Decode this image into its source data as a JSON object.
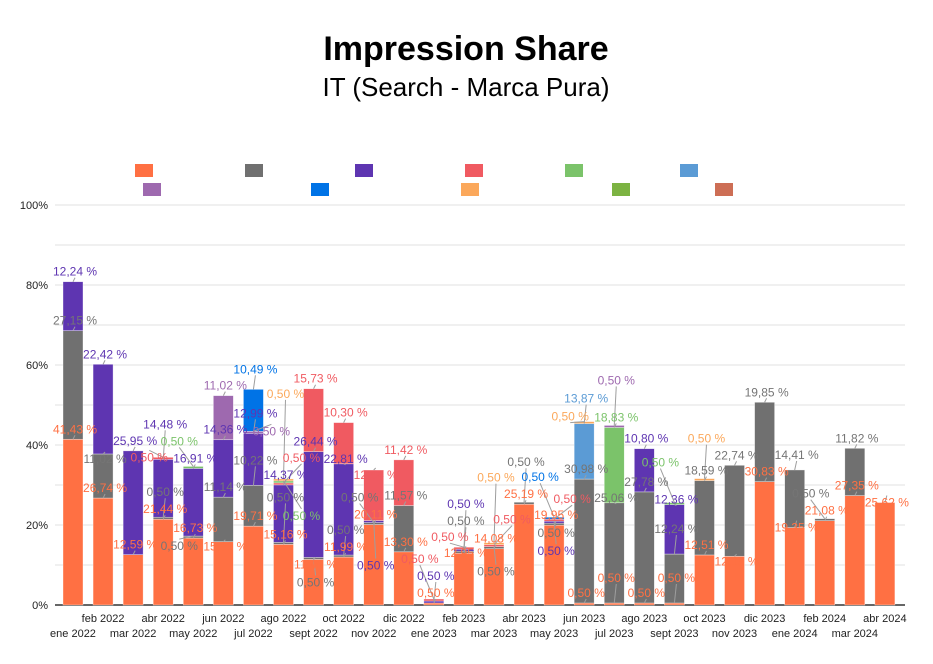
{
  "chart_data": {
    "type": "bar",
    "stacked": true,
    "title": "Impression Share",
    "subtitle": "IT (Search - Marca Pura)",
    "xlabel": "",
    "ylabel": "",
    "ylim": [
      0,
      100
    ],
    "y_ticks": [
      "0%",
      "20%",
      "40%",
      "60%",
      "80%",
      "100%"
    ],
    "y_tick_values": [
      0,
      20,
      40,
      60,
      80,
      100
    ],
    "grid": true,
    "legend": "top",
    "categories": [
      "ene 2022",
      "feb 2022",
      "mar 2022",
      "abr 2022",
      "may 2022",
      "jun 2022",
      "jul 2022",
      "ago 2022",
      "sept 2022",
      "oct 2022",
      "nov 2022",
      "dic 2022",
      "ene 2023",
      "feb 2023",
      "mar 2023",
      "abr 2023",
      "may 2023",
      "jun 2023",
      "jul 2023",
      "ago 2023",
      "sept 2023",
      "oct 2023",
      "nov 2023",
      "dic 2023",
      "ene 2024",
      "feb 2024",
      "mar 2024",
      "abr 2024"
    ],
    "series": [
      {
        "name": "",
        "color": "#ff7043",
        "label_color": "#ff7043",
        "values": [
          41.43,
          26.74,
          12.59,
          21.44,
          16.73,
          15.82,
          19.71,
          15.16,
          11.4,
          11.99,
          20.11,
          13.3,
          0.5,
          12.95,
          14.08,
          25.19,
          19.95,
          0.5,
          0.5,
          0.5,
          0.5,
          12.51,
          12.18,
          30.83,
          19.35,
          21.08,
          27.35,
          25.62
        ]
      },
      {
        "name": "",
        "color": "#707070",
        "label_color": "#757575",
        "values": [
          27.15,
          11.02,
          0,
          0.5,
          0.5,
          11.14,
          10.22,
          0.5,
          0.5,
          0.5,
          0.5,
          11.57,
          0,
          0.5,
          0.5,
          0.5,
          0.5,
          30.98,
          25.06,
          27.78,
          12.24,
          18.59,
          22.74,
          19.85,
          14.41,
          0.5,
          11.82,
          0
        ]
      },
      {
        "name": "",
        "color": "#5e35b1",
        "label_color": "#5e35b1",
        "values": [
          12.24,
          22.42,
          25.95,
          14.48,
          16.91,
          14.36,
          12.99,
          14.37,
          26.44,
          22.81,
          0.5,
          0,
          0.5,
          0.5,
          0,
          0,
          0.5,
          0,
          0,
          10.8,
          12.36,
          0,
          0,
          0,
          0,
          0,
          0,
          0
        ]
      },
      {
        "name": "",
        "color": "#f05a61",
        "label_color": "#f05a61",
        "values": [
          0,
          0,
          0,
          0.5,
          0,
          0,
          0,
          0.5,
          15.73,
          10.3,
          12.64,
          11.42,
          0.5,
          0.5,
          0.5,
          0,
          0.5,
          0,
          0,
          0,
          0,
          0,
          0,
          0,
          0,
          0,
          0,
          0
        ]
      },
      {
        "name": "",
        "color": "#7bc36a",
        "label_color": "#7bc36a",
        "values": [
          0,
          0,
          0,
          0,
          0.5,
          0,
          0,
          0.5,
          0,
          0,
          0,
          0,
          0,
          0,
          0,
          0,
          0,
          0,
          18.83,
          0,
          0.5,
          0,
          0,
          0,
          0,
          0,
          0,
          0
        ]
      },
      {
        "name": "",
        "color": "#5b9bd5",
        "label_color": "#5b9bd5",
        "values": [
          0,
          0,
          0,
          0,
          0,
          0,
          0,
          0,
          0,
          0,
          0,
          0,
          0,
          0,
          0,
          0,
          0,
          13.87,
          0,
          0,
          0,
          0,
          0,
          0,
          0,
          0,
          0,
          0
        ]
      },
      {
        "name": "",
        "color": "#9e69af",
        "label_color": "#9e69af",
        "values": [
          0,
          0,
          0,
          0,
          0,
          11.02,
          0.5,
          0,
          0,
          0,
          0,
          0,
          0,
          0,
          0,
          0,
          0,
          0,
          0.5,
          0,
          0,
          0,
          0,
          0,
          0,
          0,
          0,
          0
        ]
      },
      {
        "name": "",
        "color": "#0073e6",
        "label_color": "#0073e6",
        "values": [
          0,
          0,
          0,
          0,
          0,
          0,
          10.49,
          0,
          0,
          0,
          0,
          0,
          0,
          0,
          0,
          0,
          0.5,
          0,
          0,
          0,
          0,
          0,
          0,
          0,
          0,
          0,
          0,
          0
        ]
      },
      {
        "name": "",
        "color": "#fba85b",
        "label_color": "#fba85b",
        "values": [
          0,
          0,
          0,
          0,
          0,
          0,
          0,
          0.5,
          0,
          0,
          0,
          0,
          0,
          0,
          0.5,
          0,
          0,
          0.5,
          0,
          0,
          0,
          0.5,
          0,
          0,
          0,
          0,
          0,
          0
        ]
      },
      {
        "name": "",
        "color": "#7cb342",
        "label_color": "#7cb342",
        "values": [
          0,
          0,
          0,
          0,
          0,
          0,
          0,
          0,
          0,
          0,
          0,
          0,
          0,
          0,
          0,
          0,
          0,
          0,
          0,
          0,
          0,
          0,
          0,
          0,
          0,
          0,
          0,
          0
        ]
      },
      {
        "name": "",
        "color": "#cd6e55",
        "label_color": "#cd6e55",
        "values": [
          0,
          0,
          0,
          0,
          0,
          0,
          0,
          0,
          0,
          0,
          0,
          0,
          0,
          0,
          0,
          0,
          0,
          0,
          0,
          0,
          0,
          0,
          0,
          0,
          0,
          0,
          0,
          0
        ]
      }
    ]
  }
}
